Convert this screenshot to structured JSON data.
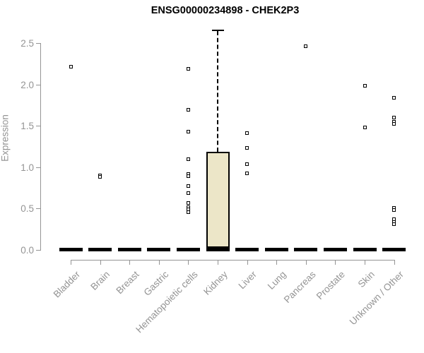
{
  "title": "ENSG00000234898 - CHEK2P3",
  "chart_data": {
    "type": "boxplot",
    "title": "ENSG00000234898 - CHEK2P3",
    "xlabel": "",
    "ylabel": "Expression",
    "ylim": [
      0,
      2.65
    ],
    "yticks": [
      0.0,
      0.5,
      1.0,
      1.5,
      2.0,
      2.5
    ],
    "grid": false,
    "legend": false,
    "categories": [
      "Bladder",
      "Brain",
      "Breast",
      "Gastric",
      "Hematopoietic cells",
      "Kidney",
      "Liver",
      "Lung",
      "Pancreas",
      "Prostate",
      "Skin",
      "Unknown / Other"
    ],
    "boxes": [
      {
        "category": "Bladder",
        "q1": 0,
        "median": 0,
        "q3": 0,
        "whisker_low": 0,
        "whisker_high": 0,
        "outliers": [
          2.21
        ]
      },
      {
        "category": "Brain",
        "q1": 0,
        "median": 0,
        "q3": 0,
        "whisker_low": 0,
        "whisker_high": 0,
        "outliers": [
          0.9,
          0.88
        ]
      },
      {
        "category": "Breast",
        "q1": 0,
        "median": 0,
        "q3": 0,
        "whisker_low": 0,
        "whisker_high": 0,
        "outliers": []
      },
      {
        "category": "Gastric",
        "q1": 0,
        "median": 0,
        "q3": 0,
        "whisker_low": 0,
        "whisker_high": 0,
        "outliers": []
      },
      {
        "category": "Hematopoietic cells",
        "q1": 0,
        "median": 0,
        "q3": 0,
        "whisker_low": 0,
        "whisker_high": 0,
        "outliers": [
          2.19,
          1.69,
          1.43,
          1.1,
          0.92,
          0.89,
          0.77,
          0.69,
          0.57,
          0.52,
          0.49,
          0.46
        ]
      },
      {
        "category": "Kidney",
        "q1": 0,
        "median": 0.02,
        "q3": 1.19,
        "whisker_low": 0,
        "whisker_high": 2.65,
        "outliers": []
      },
      {
        "category": "Liver",
        "q1": 0,
        "median": 0,
        "q3": 0,
        "whisker_low": 0,
        "whisker_high": 0,
        "outliers": [
          1.41,
          1.23,
          1.04,
          0.93
        ]
      },
      {
        "category": "Lung",
        "q1": 0,
        "median": 0,
        "q3": 0,
        "whisker_low": 0,
        "whisker_high": 0,
        "outliers": []
      },
      {
        "category": "Pancreas",
        "q1": 0,
        "median": 0,
        "q3": 0,
        "whisker_low": 0,
        "whisker_high": 0,
        "outliers": [
          2.46
        ]
      },
      {
        "category": "Prostate",
        "q1": 0,
        "median": 0,
        "q3": 0,
        "whisker_low": 0,
        "whisker_high": 0,
        "outliers": []
      },
      {
        "category": "Skin",
        "q1": 0,
        "median": 0,
        "q3": 0,
        "whisker_low": 0,
        "whisker_high": 0,
        "outliers": [
          1.98,
          1.48
        ]
      },
      {
        "category": "Unknown / Other",
        "q1": 0,
        "median": 0,
        "q3": 0,
        "whisker_low": 0,
        "whisker_high": 0,
        "outliers": [
          1.84,
          1.6,
          1.55,
          1.52,
          0.51,
          0.48,
          0.37,
          0.34,
          0.31
        ]
      }
    ],
    "colors": {
      "box_fill": "#ECE6C8",
      "box_border": "#000000",
      "point": "#000000",
      "axis": "#949494",
      "tick_label": "#949494",
      "title": "#000000",
      "background": "#ffffff"
    }
  }
}
